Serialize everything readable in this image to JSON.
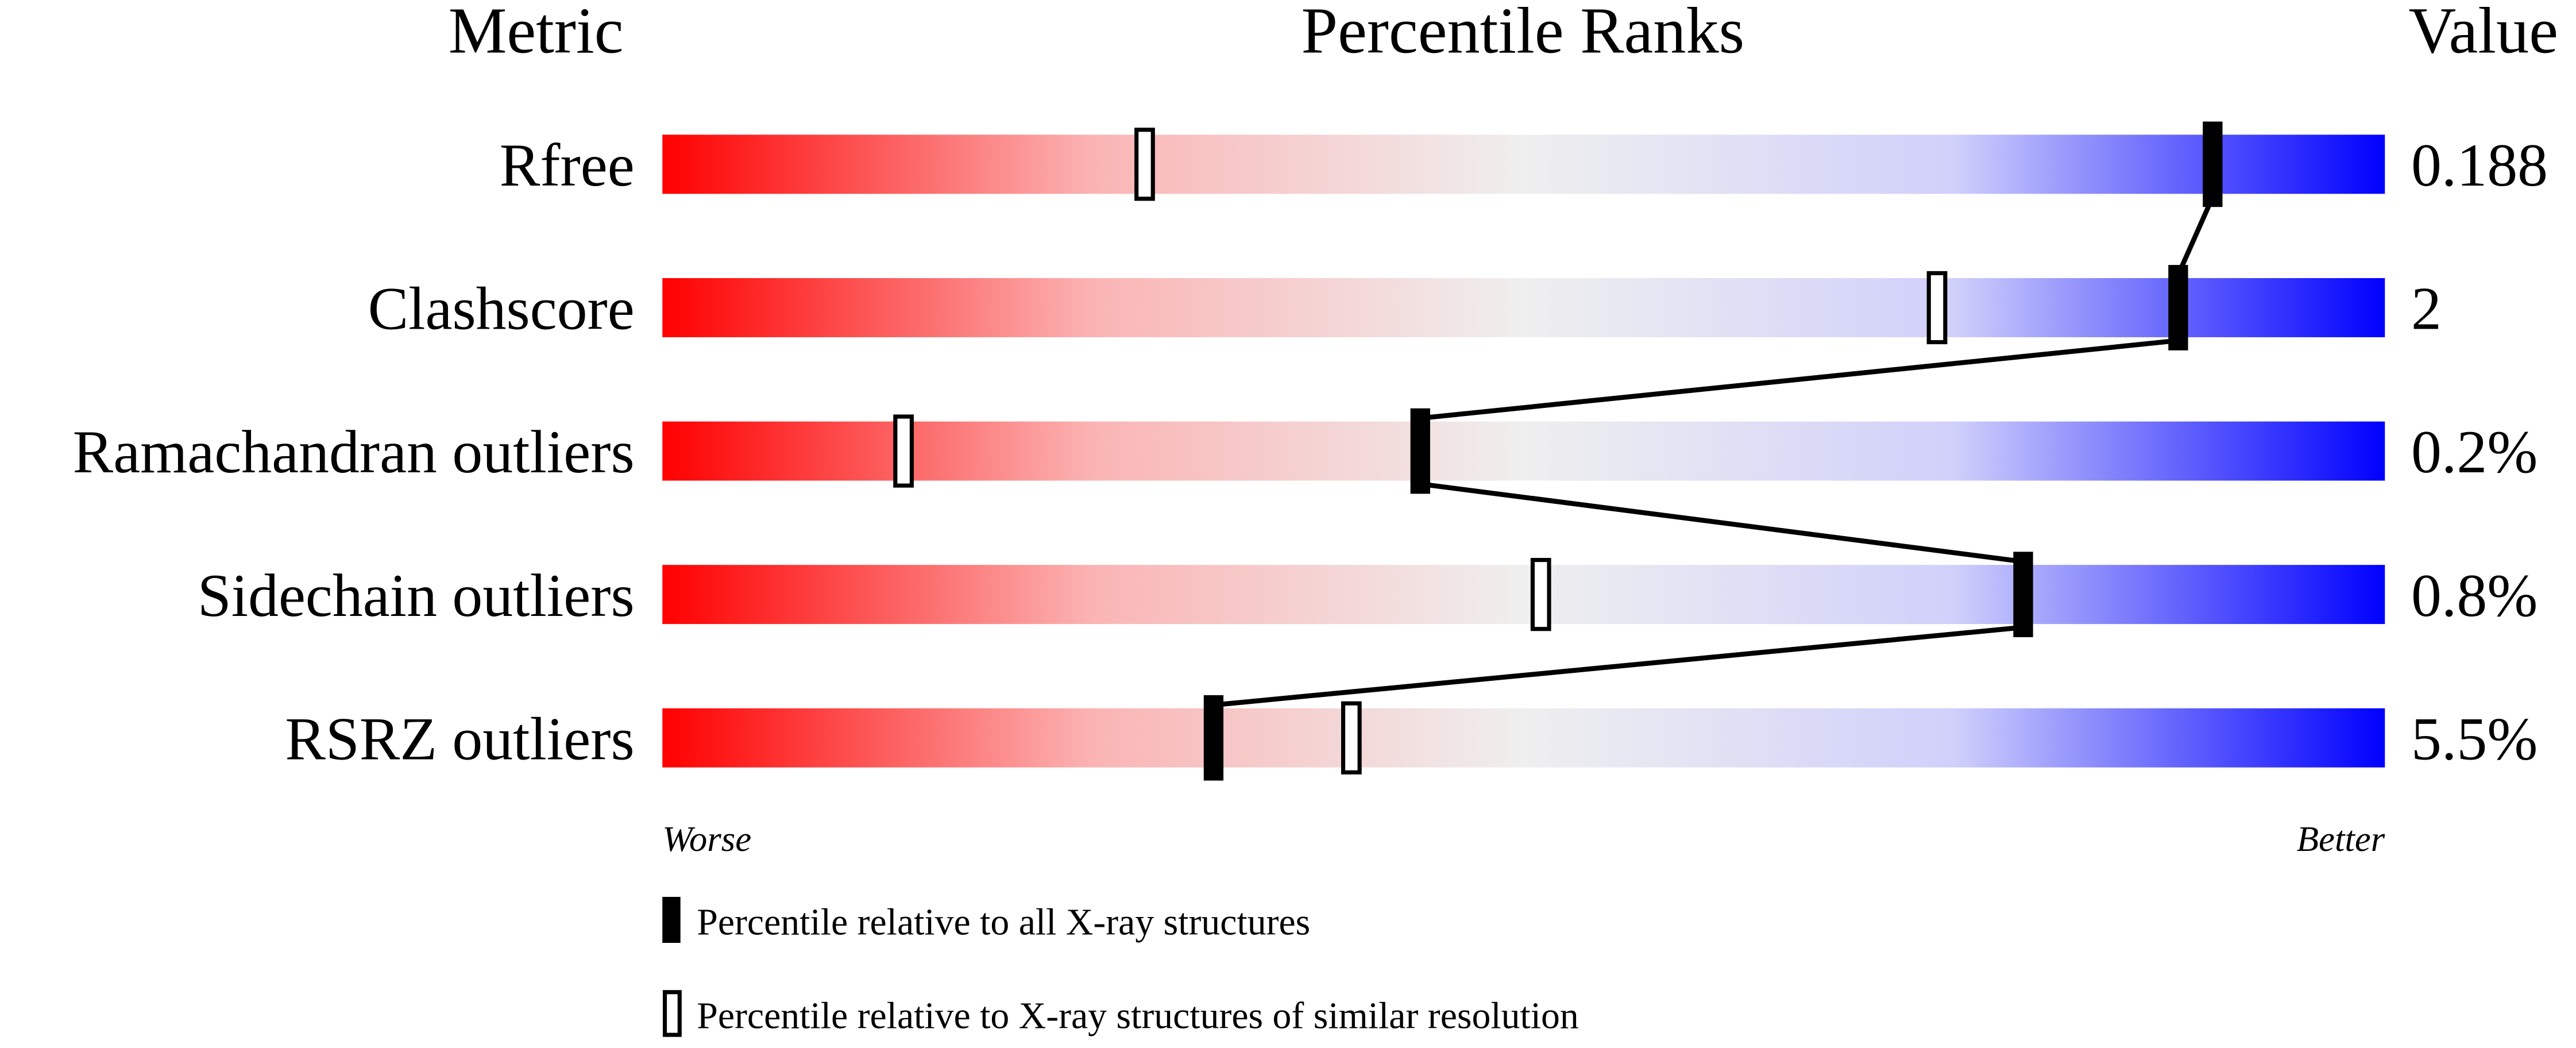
{
  "chart_data": {
    "type": "percentile-bar",
    "headers": {
      "metric": "Metric",
      "ranks": "Percentile Ranks",
      "value": "Value"
    },
    "xlim": [
      0,
      100
    ],
    "axis_ends": {
      "left": "Worse",
      "right": "Better"
    },
    "gradient_colors": [
      "#ff0000",
      "#f0f0f0",
      "#0000ff"
    ],
    "metrics": [
      {
        "name": "Rfree",
        "value": "0.188",
        "percentile_all": 90,
        "percentile_similar": 28
      },
      {
        "name": "Clashscore",
        "value": "2",
        "percentile_all": 88,
        "percentile_similar": 74
      },
      {
        "name": "Ramachandran outliers",
        "value": "0.2%",
        "percentile_all": 44,
        "percentile_similar": 14
      },
      {
        "name": "Sidechain outliers",
        "value": "0.8%",
        "percentile_all": 79,
        "percentile_similar": 51
      },
      {
        "name": "RSRZ outliers",
        "value": "5.5%",
        "percentile_all": 32,
        "percentile_similar": 40
      }
    ],
    "legend": [
      {
        "marker": "filled",
        "label": "Percentile relative to all X-ray structures"
      },
      {
        "marker": "open",
        "label": "Percentile relative to X-ray structures of similar resolution"
      }
    ]
  }
}
